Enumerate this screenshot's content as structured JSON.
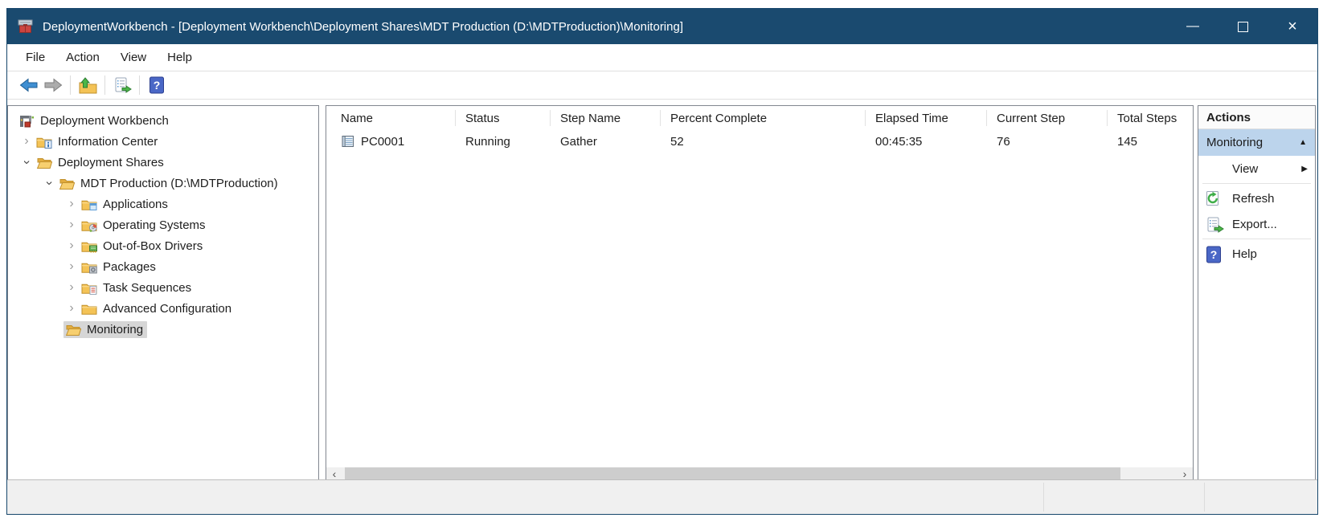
{
  "window": {
    "title": "DeploymentWorkbench - [Deployment Workbench\\Deployment Shares\\MDT Production (D:\\MDTProduction)\\Monitoring]",
    "app_icon": "mdt-app-icon",
    "controls": [
      {
        "name": "minimize-button",
        "glyph": "—"
      },
      {
        "name": "maximize-button",
        "glyph": "□"
      },
      {
        "name": "close-button",
        "glyph": "×"
      }
    ]
  },
  "menubar": {
    "items": [
      "File",
      "Action",
      "View",
      "Help"
    ]
  },
  "toolbar": {
    "buttons": [
      {
        "name": "back-button",
        "icon": "back-icon",
        "separator_after": false
      },
      {
        "name": "forward-button",
        "icon": "forward-icon",
        "separator_after": true
      },
      {
        "name": "up-one-level-button",
        "icon": "up-folder-icon",
        "separator_after": true
      },
      {
        "name": "export-list-button",
        "icon": "export-icon",
        "separator_after": true
      },
      {
        "name": "help-button",
        "icon": "help-icon",
        "separator_after": false
      }
    ]
  },
  "tree": {
    "collapsed_glyph": "›",
    "items": [
      {
        "label": "Deployment Workbench",
        "level": 0,
        "expander": "none",
        "icon": "workbench-icon",
        "selected": false
      },
      {
        "label": "Information Center",
        "level": 1,
        "expander": "collapsed",
        "icon": "folder-info-icon",
        "selected": false
      },
      {
        "label": "Deployment Shares",
        "level": 1,
        "expander": "expanded",
        "icon": "folder-open-icon",
        "selected": false
      },
      {
        "label": "MDT Production (D:\\MDTProduction)",
        "level": 2,
        "expander": "expanded",
        "icon": "folder-open-icon",
        "selected": false
      },
      {
        "label": "Applications",
        "level": 3,
        "expander": "collapsed",
        "icon": "folder-apps-icon",
        "selected": false
      },
      {
        "label": "Operating Systems",
        "level": 3,
        "expander": "collapsed",
        "icon": "folder-os-icon",
        "selected": false
      },
      {
        "label": "Out-of-Box Drivers",
        "level": 3,
        "expander": "collapsed",
        "icon": "folder-drivers-icon",
        "selected": false
      },
      {
        "label": "Packages",
        "level": 3,
        "expander": "collapsed",
        "icon": "folder-packages-icon",
        "selected": false
      },
      {
        "label": "Task Sequences",
        "level": 3,
        "expander": "collapsed",
        "icon": "folder-tasks-icon",
        "selected": false
      },
      {
        "label": "Advanced Configuration",
        "level": 3,
        "expander": "collapsed",
        "icon": "folder-plain-icon",
        "selected": false
      },
      {
        "label": "Monitoring",
        "level": 3,
        "expander": "none",
        "icon": "folder-open-icon",
        "selected": true
      }
    ]
  },
  "table": {
    "columns": [
      "Name",
      "Status",
      "Step Name",
      "Percent Complete",
      "Elapsed Time",
      "Current Step",
      "Total Steps"
    ],
    "rows": [
      {
        "icon": "computer-icon",
        "cells": [
          "PC0001",
          "Running",
          "Gather",
          "52",
          "00:45:35",
          "76",
          "145"
        ]
      }
    ]
  },
  "actions": {
    "title": "Actions",
    "group_label": "Monitoring",
    "collapse_glyph": "▲",
    "items": [
      {
        "label": "View",
        "icon": null,
        "submenu_glyph": "▶",
        "separator_after": true
      },
      {
        "label": "Refresh",
        "icon": "refresh-icon",
        "submenu_glyph": null,
        "separator_after": false
      },
      {
        "label": "Export...",
        "icon": "export-icon",
        "submenu_glyph": null,
        "separator_after": true
      },
      {
        "label": "Help",
        "icon": "help-icon",
        "submenu_glyph": null,
        "separator_after": false
      }
    ]
  },
  "scrollbar": {
    "left_glyph": "‹",
    "right_glyph": "›"
  },
  "colors": {
    "titlebar": "#1A4A6F",
    "actions_group": "#BCD4EC",
    "tree_selection": "#D6D6D6",
    "folder": "#F4C356",
    "green_accent": "#4CB748"
  }
}
